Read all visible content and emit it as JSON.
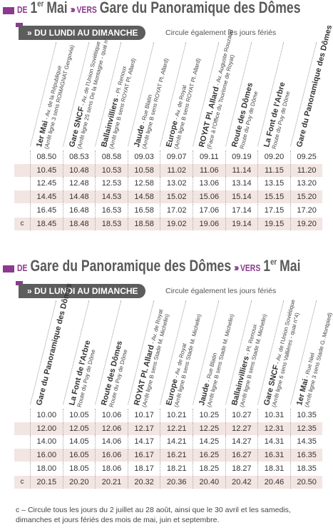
{
  "sections": [
    {
      "title": [
        {
          "text": "DE",
          "style": "prefix"
        },
        {
          "text": "1",
          "style": "place"
        },
        {
          "text": "er",
          "style": "sup"
        },
        {
          "text": "Mai",
          "style": "place"
        },
        {
          "text": "›››",
          "style": "arrows"
        },
        {
          "text": "VERS",
          "style": "prefix"
        },
        {
          "text": "Gare du Panoramique des Dômes",
          "style": "place"
        }
      ],
      "banner": {
        "label": "» DU LUNDI AU DIMANCHE",
        "note": "Circule également les jours fériés"
      },
      "stops": [
        {
          "name": "1er Mai",
          "street": "- Av. de la République",
          "note": "(Arrêt ligne 3 sens ROMAGNAT Gergovia)"
        },
        {
          "name": "Gare SNCF",
          "street": "- Av. de l'Union Soviétique",
          "note": "(Arrêt ligne 25 sens De la Montagne - quai n°1)"
        },
        {
          "name": "Ballainvilliers",
          "street": "- Pl. Renoux",
          "note": "(Arrêt ligne B sens ROYAT Pl. Allard)"
        },
        {
          "name": "Jaude",
          "street": "- Rue Blatin",
          "note": "(Arrêt ligne B sens ROYAT Pl. Allard)"
        },
        {
          "name": "Europe",
          "street": "- Av. de Royat",
          "note": "(Arrêt ligne B sens ROYAT Pl. Allard)"
        },
        {
          "name": "ROYAT Pl. Allard",
          "street": "- Av. Auguste Rouzaud",
          "note": "(Face à l'Office du Tourisme de Royat)"
        },
        {
          "name": "Route des Dômes",
          "note": "Route du Puy de Dôme"
        },
        {
          "name": "La Font de l'Arbre",
          "note": "Route du Puy de Dôme"
        },
        {
          "name": "Gare du Panoramique des Dômes"
        }
      ],
      "rows": [
        {
          "times": [
            "08.50",
            "08.53",
            "08.58",
            "09.03",
            "09.07",
            "09.11",
            "09.19",
            "09.20",
            "09.25"
          ]
        },
        {
          "times": [
            "10.45",
            "10.48",
            "10.53",
            "10.58",
            "11.02",
            "11.06",
            "11.14",
            "11.15",
            "11.20"
          ]
        },
        {
          "times": [
            "12.45",
            "12.48",
            "12.53",
            "12.58",
            "13.02",
            "13.06",
            "13.14",
            "13.15",
            "13.20"
          ]
        },
        {
          "times": [
            "14.45",
            "14.48",
            "14.53",
            "14.58",
            "15.02",
            "15.06",
            "15.14",
            "15.15",
            "15.20"
          ]
        },
        {
          "times": [
            "16.45",
            "16.48",
            "16.53",
            "16.58",
            "17.02",
            "17.06",
            "17.14",
            "17.15",
            "17.20"
          ]
        },
        {
          "flag": "c",
          "times": [
            "18.45",
            "18.48",
            "18.53",
            "18.58",
            "19.02",
            "19.06",
            "19.14",
            "19.15",
            "19.20"
          ]
        }
      ]
    },
    {
      "title": [
        {
          "text": "DE",
          "style": "prefix"
        },
        {
          "text": "Gare du Panoramique des Dômes",
          "style": "place"
        },
        {
          "text": "›››",
          "style": "arrows"
        },
        {
          "text": "VERS",
          "style": "prefix"
        },
        {
          "text": "1",
          "style": "place"
        },
        {
          "text": "er",
          "style": "sup"
        },
        {
          "text": "Mai",
          "style": "place"
        }
      ],
      "banner": {
        "label": "» DU LUNDI AU DIMANCHE",
        "note": "Circule également les jours fériés"
      },
      "stops": [
        {
          "name": "Gare du Panoramique des Dômes"
        },
        {
          "name": "La Font de l'Arbre",
          "note": "Route du Puy de Dôme"
        },
        {
          "name": "Route des Dômes",
          "note": "Route du Puy de Dôme"
        },
        {
          "name": "ROYAT Pl. Allard",
          "street": "- Av. de Royat",
          "note": "(Arrêt ligne B sens Stade M. Michelin)"
        },
        {
          "name": "Europe",
          "street": "- Av. de Royat",
          "note": "(Arrêt ligne B sens Stade M. Michelin)"
        },
        {
          "name": "Jaude",
          "street": "- Rue Blatin",
          "note": "(Arrêt ligne B sens Stade M. Michelin)"
        },
        {
          "name": "Ballainvilliers",
          "street": "- Pl. Renoux",
          "note": "(Arrêt ligne B sens Stade M. Michelin)"
        },
        {
          "name": "Gare SNCF",
          "street": "- Av. de l'Union Soviétique",
          "note": "(Arrêt ligne 6 sens Vallières - quai n°4)"
        },
        {
          "name": "1er Mai",
          "street": "- Rue Niel",
          "note": "(Arrêt ligne 3 sens Stade G. Montpied)"
        }
      ],
      "rows": [
        {
          "times": [
            "10.00",
            "10.05",
            "10.06",
            "10.17",
            "10.21",
            "10.25",
            "10.27",
            "10.31",
            "10.35"
          ]
        },
        {
          "times": [
            "12.00",
            "12.05",
            "12.06",
            "12.17",
            "12.21",
            "12.25",
            "12.27",
            "12.31",
            "12.35"
          ]
        },
        {
          "times": [
            "14.00",
            "14.05",
            "14.06",
            "14.17",
            "14.21",
            "14.25",
            "14.27",
            "14.31",
            "14.35"
          ]
        },
        {
          "times": [
            "16.00",
            "16.05",
            "16.06",
            "16.17",
            "16.21",
            "16.25",
            "16.27",
            "16.31",
            "16.35"
          ]
        },
        {
          "times": [
            "18.00",
            "18.05",
            "18.06",
            "18.17",
            "18.21",
            "18.25",
            "18.27",
            "18.31",
            "18.35"
          ]
        },
        {
          "flag": "c",
          "times": [
            "20.15",
            "20.20",
            "20.21",
            "20.32",
            "20.36",
            "20.40",
            "20.42",
            "20.46",
            "20.50"
          ]
        }
      ]
    }
  ],
  "footnote": {
    "mark": "c –",
    "text": "Circule tous les jours du 2 juillet au 28 août, ainsi que le 30 avril et les samedis, dimanches et jours fériés des mois de mai, juin et septembre."
  }
}
